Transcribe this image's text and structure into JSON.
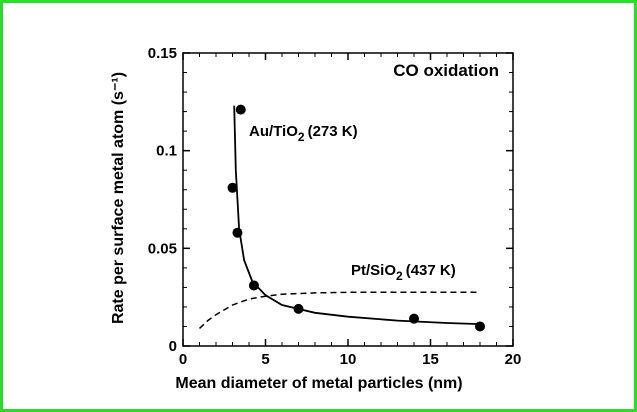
{
  "chart_data": {
    "type": "scatter",
    "title": "",
    "annotation": "CO oxidation",
    "xlabel": "Mean diameter of metal particles (nm)",
    "ylabel": "Rate per surface metal atom (s⁻¹)",
    "xlim": [
      0,
      20
    ],
    "ylim": [
      0,
      0.15
    ],
    "xticks": [
      0,
      5,
      10,
      15,
      20
    ],
    "xtick_labels": [
      "0",
      "5",
      "10",
      "15",
      "20"
    ],
    "yticks": [
      0,
      0.05,
      0.1,
      0.15
    ],
    "ytick_labels": [
      "0",
      "0.05",
      "0.1",
      "0.15"
    ],
    "grid": false,
    "legend": "none",
    "series": [
      {
        "name": "Au/TiO2 (273 K)",
        "label_main": "Au/TiO",
        "label_sub": "2",
        "label_temp": "(273 K)",
        "style": "solid line with markers",
        "points": [
          {
            "x": 3.5,
            "y": 0.121
          },
          {
            "x": 3.0,
            "y": 0.081
          },
          {
            "x": 3.3,
            "y": 0.058
          },
          {
            "x": 4.3,
            "y": 0.031
          },
          {
            "x": 7.0,
            "y": 0.019
          },
          {
            "x": 14.0,
            "y": 0.014
          },
          {
            "x": 18.0,
            "y": 0.01
          }
        ],
        "curve": [
          {
            "x": 3.1,
            "y": 0.123
          },
          {
            "x": 3.2,
            "y": 0.09
          },
          {
            "x": 3.4,
            "y": 0.06
          },
          {
            "x": 3.7,
            "y": 0.044
          },
          {
            "x": 4.2,
            "y": 0.033
          },
          {
            "x": 5.0,
            "y": 0.026
          },
          {
            "x": 6.0,
            "y": 0.021
          },
          {
            "x": 8.0,
            "y": 0.017
          },
          {
            "x": 10.0,
            "y": 0.015
          },
          {
            "x": 13.0,
            "y": 0.013
          },
          {
            "x": 16.0,
            "y": 0.0118
          },
          {
            "x": 18.0,
            "y": 0.0112
          }
        ]
      },
      {
        "name": "Pt/SiO2 (437 K)",
        "label_main": "Pt/SiO",
        "label_sub": "2",
        "label_temp": "(437 K)",
        "style": "dashed line",
        "curve": [
          {
            "x": 1.0,
            "y": 0.009
          },
          {
            "x": 1.5,
            "y": 0.013
          },
          {
            "x": 2.0,
            "y": 0.016
          },
          {
            "x": 3.0,
            "y": 0.021
          },
          {
            "x": 4.0,
            "y": 0.024
          },
          {
            "x": 5.0,
            "y": 0.0255
          },
          {
            "x": 6.0,
            "y": 0.0265
          },
          {
            "x": 8.0,
            "y": 0.0272
          },
          {
            "x": 10.0,
            "y": 0.0275
          },
          {
            "x": 14.0,
            "y": 0.0275
          },
          {
            "x": 18.0,
            "y": 0.0275
          }
        ]
      }
    ]
  }
}
